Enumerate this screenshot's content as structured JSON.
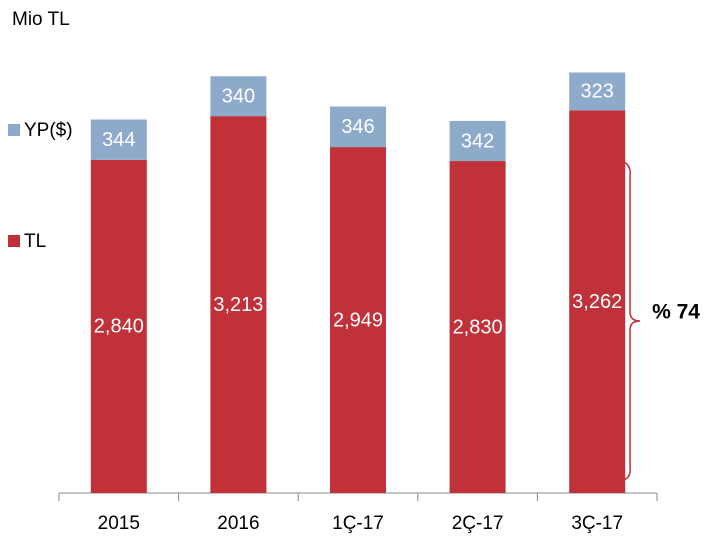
{
  "chart_data": {
    "type": "stacked_bar",
    "title": "Mio TL",
    "categories": [
      "2015",
      "2016",
      "1Ç-17",
      "2Ç-17",
      "3Ç-17"
    ],
    "series": [
      {
        "name": "TL",
        "color": "#c0313a",
        "values": [
          2840,
          3213,
          2949,
          2830,
          3262
        ],
        "value_labels": [
          "2,840",
          "3,213",
          "2,949",
          "2,830",
          "3,262"
        ]
      },
      {
        "name": "YP($)",
        "color": "#8eaacb",
        "values": [
          344,
          340,
          346,
          342,
          323
        ]
      }
    ],
    "ylim": [
      0,
      3700
    ],
    "annotation": "% 74"
  }
}
